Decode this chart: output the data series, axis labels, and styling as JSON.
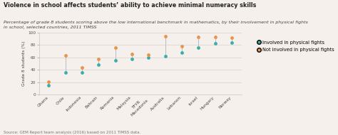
{
  "title": "Violence in school affects students’ ability to achieve minimal numeracy skills",
  "subtitle": "Percentage of grade 8 students scoring above the low international benchmark in mathematics, by their involvement in physical fights\nin school, selected countries, 2011 TIMSS",
  "source": "Source: GEM Report team analysis (2016) based on 2011 TIMSS data.",
  "ylabel": "Grade 8 students (%)",
  "countries": [
    "Ghana",
    "Chile",
    "Indonesia",
    "Bahrain",
    "Romania",
    "Malaysia",
    "TFYR\nMacedonia",
    "Australia",
    "Lebanon",
    "Israel",
    "Hungary",
    "Norway"
  ],
  "involved": [
    15,
    36,
    36,
    48,
    55,
    57,
    59,
    62,
    68,
    75,
    82,
    83
  ],
  "not_involved": [
    21,
    63,
    44,
    57,
    75,
    65,
    64,
    94,
    78,
    93,
    93,
    91
  ],
  "color_involved": "#3aafa9",
  "color_not_involved": "#e8954a",
  "ylim": [
    0,
    100
  ],
  "yticks": [
    0,
    20,
    40,
    60,
    80,
    100
  ],
  "bg_color": "#f5f0eb",
  "title_fontsize": 5.8,
  "subtitle_fontsize": 4.5,
  "source_fontsize": 4.0,
  "legend_fontsize": 4.8,
  "tick_fontsize": 4.2,
  "ylabel_fontsize": 4.2
}
